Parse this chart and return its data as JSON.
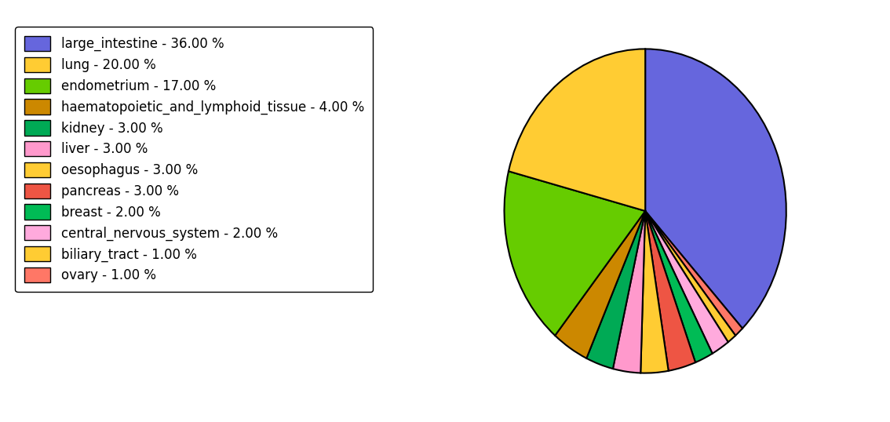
{
  "labels": [
    "large_intestine",
    "lung",
    "endometrium",
    "haematopoietic_and_lymphoid_tissue",
    "kidney",
    "liver",
    "oesophagus",
    "pancreas",
    "breast",
    "central_nervous_system",
    "biliary_tract",
    "ovary"
  ],
  "values": [
    36,
    20,
    17,
    4,
    3,
    3,
    3,
    3,
    2,
    2,
    1,
    1
  ],
  "colors": [
    "#6666dd",
    "#ffcc33",
    "#66cc00",
    "#cc8800",
    "#00aa55",
    "#ff99cc",
    "#ffcc33",
    "#ee5544",
    "#00bb55",
    "#ffaadd",
    "#ffcc33",
    "#ff7766"
  ],
  "legend_labels": [
    "large_intestine - 36.00 %",
    "lung - 20.00 %",
    "endometrium - 17.00 %",
    "haematopoietic_and_lymphoid_tissue - 4.00 %",
    "kidney - 3.00 %",
    "liver - 3.00 %",
    "oesophagus - 3.00 %",
    "pancreas - 3.00 %",
    "breast - 2.00 %",
    "central_nervous_system - 2.00 %",
    "biliary_tract - 1.00 %",
    "ovary - 1.00 %"
  ],
  "legend_colors": [
    "#6666dd",
    "#ffcc33",
    "#66cc00",
    "#cc8800",
    "#00aa55",
    "#ff99cc",
    "#ffcc33",
    "#ee5544",
    "#00bb55",
    "#ffaadd",
    "#ffcc33",
    "#ff7766"
  ],
  "startangle": 90,
  "figsize": [
    11.34,
    5.38
  ],
  "dpi": 100,
  "legend_fontsize": 12,
  "edgecolor": "black",
  "linewidth": 1.5
}
